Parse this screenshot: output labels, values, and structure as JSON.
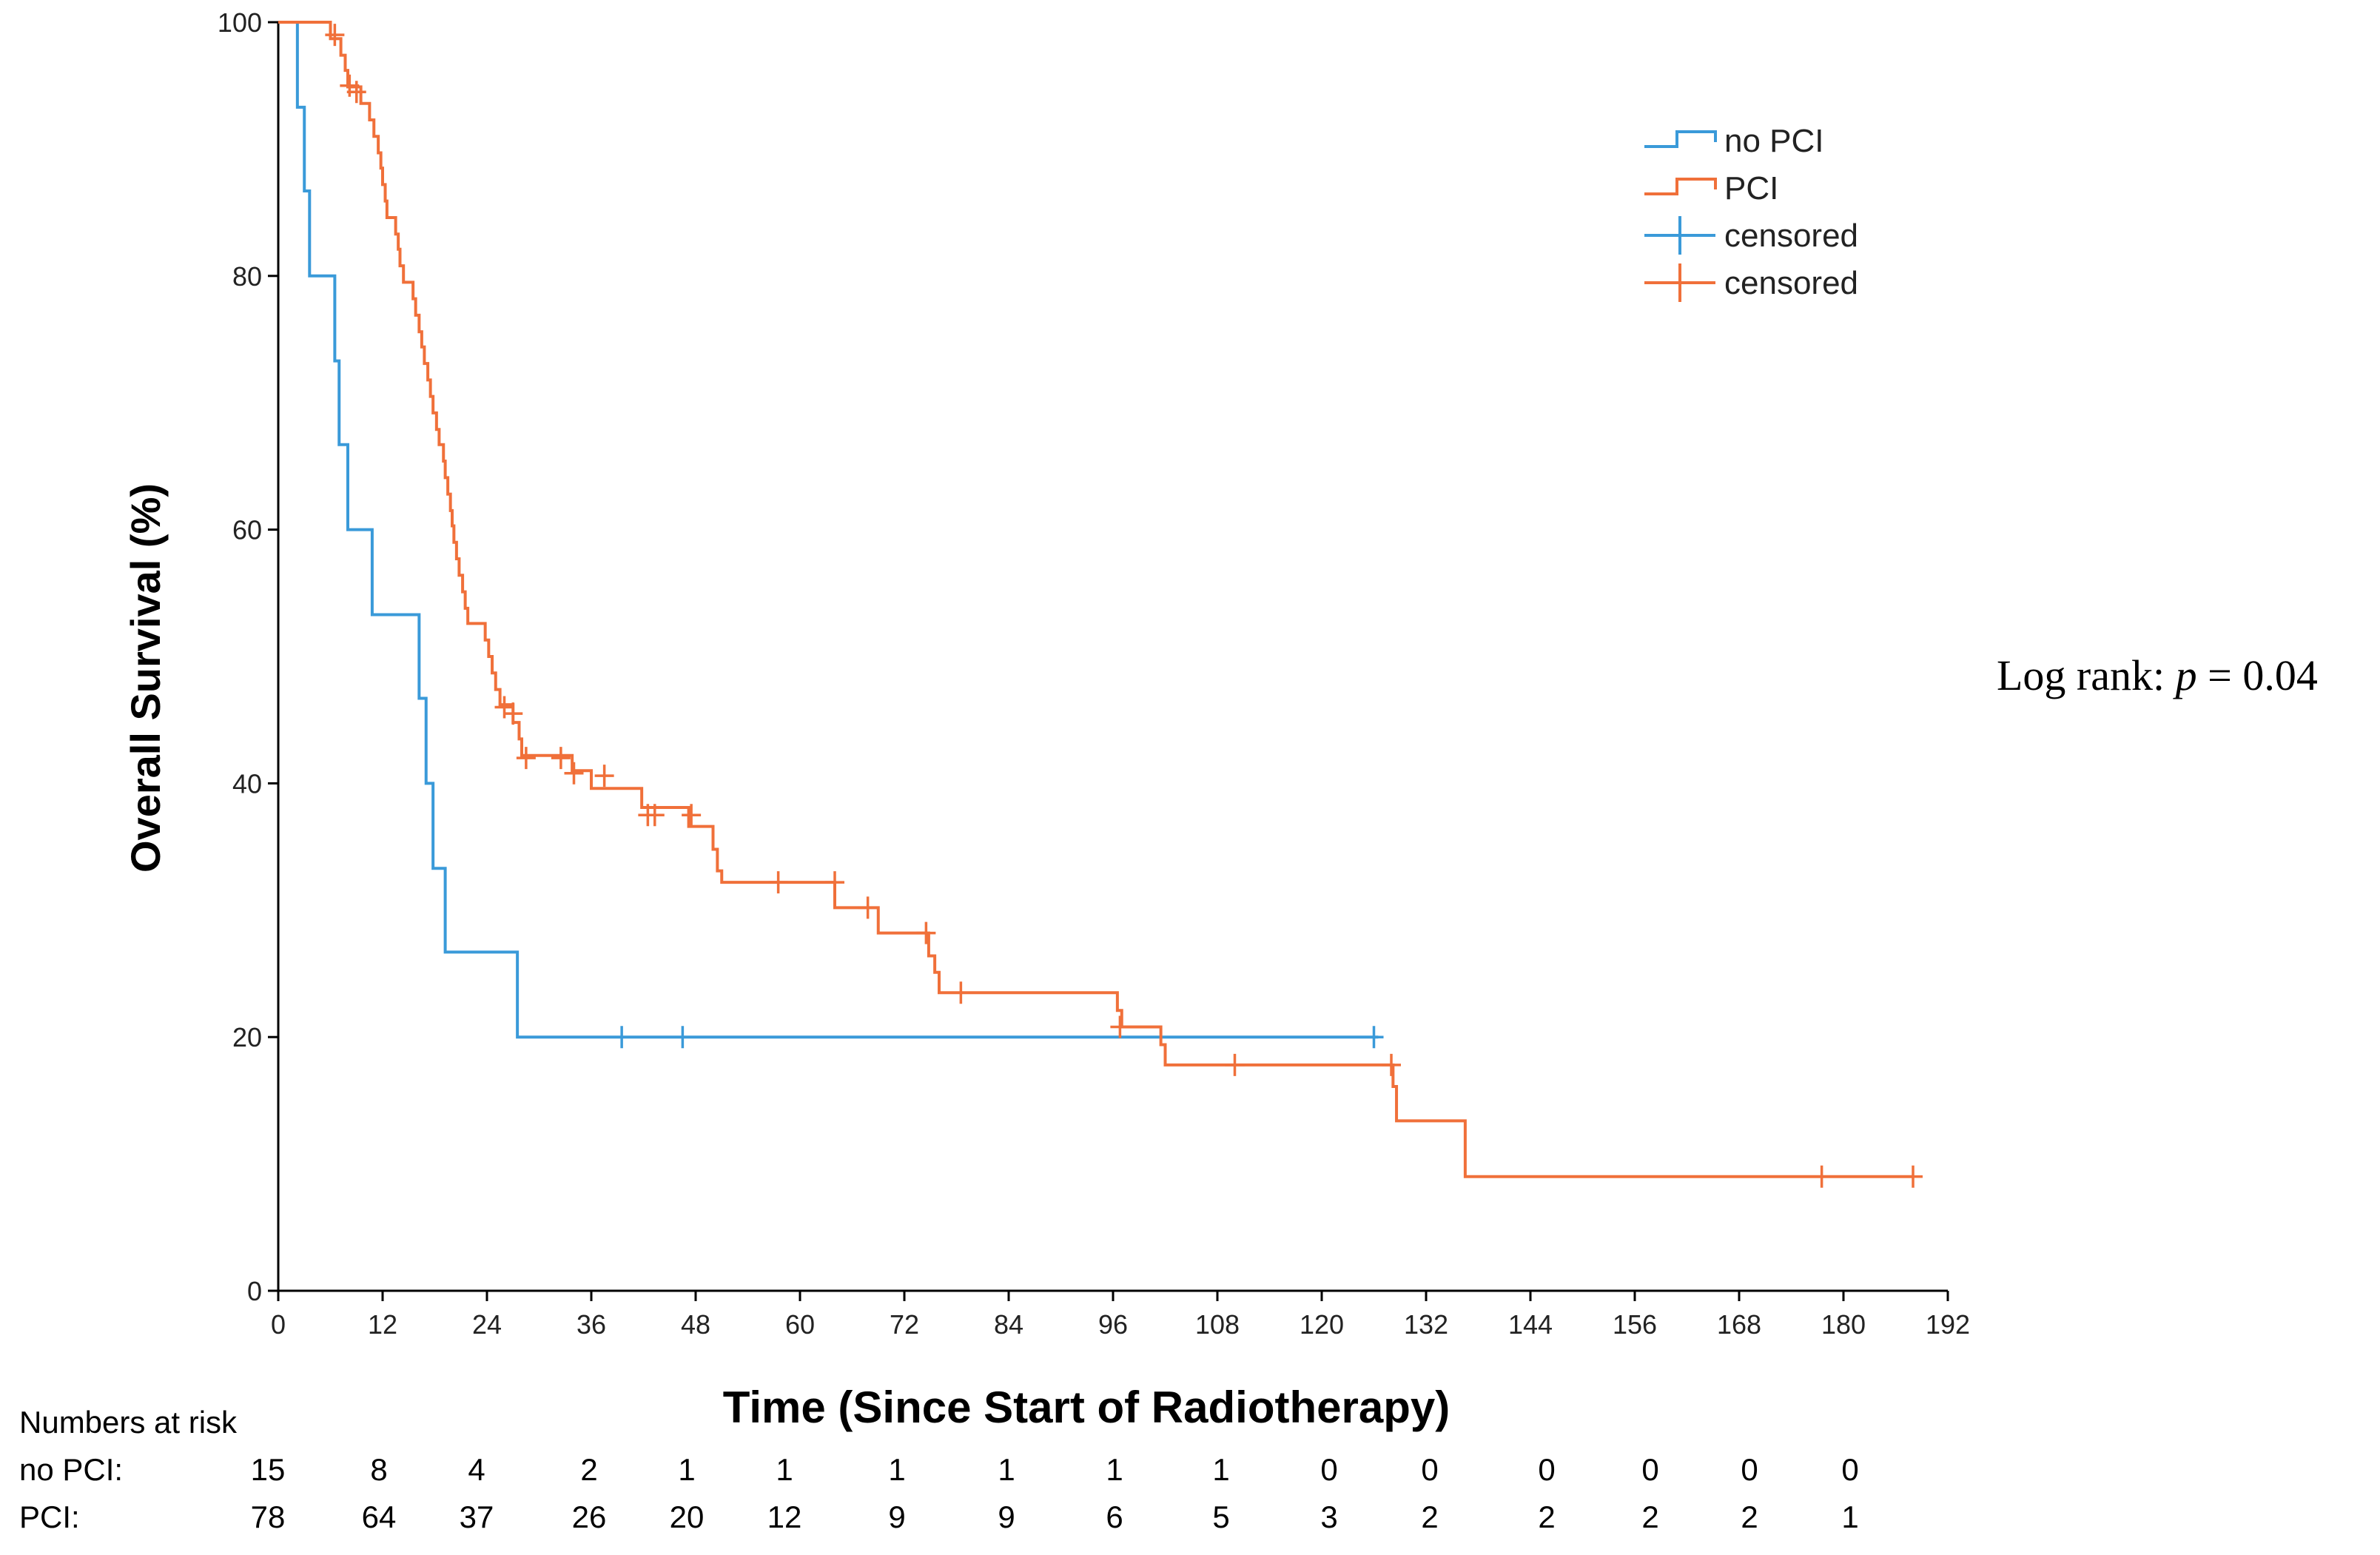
{
  "chart_data": {
    "type": "line",
    "subtype": "kaplan-meier",
    "title": "",
    "xlabel": "Time (Since Start of Radiotherapy)",
    "ylabel": "Overall Survival (%)",
    "xlim": [
      0,
      192
    ],
    "ylim": [
      0,
      100
    ],
    "x_ticks": [
      0,
      12,
      24,
      36,
      48,
      60,
      72,
      84,
      96,
      108,
      120,
      132,
      144,
      156,
      168,
      180,
      192
    ],
    "y_ticks": [
      0,
      20,
      40,
      60,
      80,
      100
    ],
    "grid": false,
    "legend_position": "top-right",
    "legend": [
      "no PCI",
      "PCI",
      "censored",
      "censored"
    ],
    "colors": {
      "no_pci": "#3a9ad9",
      "pci": "#f0703a"
    },
    "series": [
      {
        "name": "no PCI",
        "color": "#3a9ad9",
        "steps": [
          [
            0,
            100
          ],
          [
            2.2,
            93.3
          ],
          [
            3,
            86.7
          ],
          [
            3.6,
            80
          ],
          [
            6.5,
            73.3
          ],
          [
            7,
            66.7
          ],
          [
            8,
            60
          ],
          [
            10.8,
            53.3
          ],
          [
            16.2,
            46.7
          ],
          [
            17,
            40
          ],
          [
            17.8,
            33.3
          ],
          [
            19.2,
            26.7
          ],
          [
            27.5,
            20
          ],
          [
            126.5,
            20
          ]
        ],
        "censored": [
          [
            39.5,
            20
          ],
          [
            46.5,
            20
          ],
          [
            126,
            20
          ]
        ]
      },
      {
        "name": "PCI",
        "color": "#f0703a",
        "steps": [
          [
            0,
            100
          ],
          [
            6,
            98.7
          ],
          [
            7.2,
            97.4
          ],
          [
            7.7,
            96.2
          ],
          [
            8,
            94.9
          ],
          [
            9.5,
            93.6
          ],
          [
            10.5,
            92.3
          ],
          [
            11,
            91
          ],
          [
            11.5,
            89.7
          ],
          [
            11.8,
            88.5
          ],
          [
            12,
            87.2
          ],
          [
            12.3,
            85.9
          ],
          [
            12.5,
            84.6
          ],
          [
            13.5,
            83.3
          ],
          [
            13.8,
            82.1
          ],
          [
            14,
            80.8
          ],
          [
            14.4,
            79.5
          ],
          [
            15.5,
            78.2
          ],
          [
            15.8,
            76.9
          ],
          [
            16.2,
            75.6
          ],
          [
            16.5,
            74.4
          ],
          [
            16.8,
            73.1
          ],
          [
            17.2,
            71.8
          ],
          [
            17.5,
            70.5
          ],
          [
            17.8,
            69.2
          ],
          [
            18.2,
            67.9
          ],
          [
            18.5,
            66.7
          ],
          [
            19,
            65.4
          ],
          [
            19.2,
            64.1
          ],
          [
            19.5,
            62.8
          ],
          [
            19.8,
            61.5
          ],
          [
            20,
            60.3
          ],
          [
            20.2,
            59
          ],
          [
            20.5,
            57.7
          ],
          [
            20.8,
            56.4
          ],
          [
            21.2,
            55.1
          ],
          [
            21.5,
            53.8
          ],
          [
            21.8,
            52.6
          ],
          [
            23.8,
            51.3
          ],
          [
            24.2,
            50
          ],
          [
            24.6,
            48.7
          ],
          [
            25,
            47.4
          ],
          [
            25.5,
            46.2
          ],
          [
            27,
            44.8
          ],
          [
            27.7,
            43.5
          ],
          [
            28,
            42.2
          ],
          [
            33.8,
            41
          ],
          [
            36,
            39.6
          ],
          [
            41.8,
            38.1
          ],
          [
            47.2,
            36.6
          ],
          [
            50,
            34.8
          ],
          [
            50.5,
            33.1
          ],
          [
            51,
            32.2
          ],
          [
            64,
            30.2
          ],
          [
            69,
            28.2
          ],
          [
            74.8,
            26.4
          ],
          [
            75.5,
            25.1
          ],
          [
            76,
            23.5
          ],
          [
            96.5,
            22.1
          ],
          [
            97,
            20.8
          ],
          [
            101.5,
            19.4
          ],
          [
            102,
            17.8
          ],
          [
            128.2,
            16.1
          ],
          [
            128.6,
            13.4
          ],
          [
            136.5,
            9
          ],
          [
            188,
            9
          ]
        ],
        "censored": [
          [
            6.5,
            99
          ],
          [
            8.2,
            95
          ],
          [
            9,
            94.5
          ],
          [
            26,
            46
          ],
          [
            27,
            45.5
          ],
          [
            28.5,
            42
          ],
          [
            32.5,
            42
          ],
          [
            34,
            40.8
          ],
          [
            37.5,
            40.6
          ],
          [
            42.5,
            37.5
          ],
          [
            43.3,
            37.5
          ],
          [
            47.5,
            37.5
          ],
          [
            57.5,
            32.2
          ],
          [
            64,
            32.2
          ],
          [
            67.8,
            30.2
          ],
          [
            74.5,
            28.2
          ],
          [
            78.5,
            23.5
          ],
          [
            96.8,
            20.8
          ],
          [
            110,
            17.8
          ],
          [
            128,
            17.8
          ],
          [
            177.5,
            9
          ],
          [
            188,
            9
          ]
        ]
      }
    ],
    "annotation": {
      "prefix": "Log rank: ",
      "p_symbol": "p",
      "suffix": " = 0.04"
    },
    "risk_table": {
      "title": "Numbers at risk",
      "groups": [
        {
          "label": "no PCI:",
          "counts": [
            "15",
            "8",
            "4",
            "2",
            "1",
            "1",
            "1",
            "1",
            "1",
            "1",
            "0",
            "0",
            "0",
            "0",
            "0",
            "0"
          ]
        },
        {
          "label": "PCI:",
          "counts": [
            "78",
            "64",
            "37",
            "26",
            "20",
            "12",
            "9",
            "9",
            "6",
            "5",
            "3",
            "2",
            "2",
            "2",
            "2",
            "1"
          ]
        }
      ]
    }
  }
}
